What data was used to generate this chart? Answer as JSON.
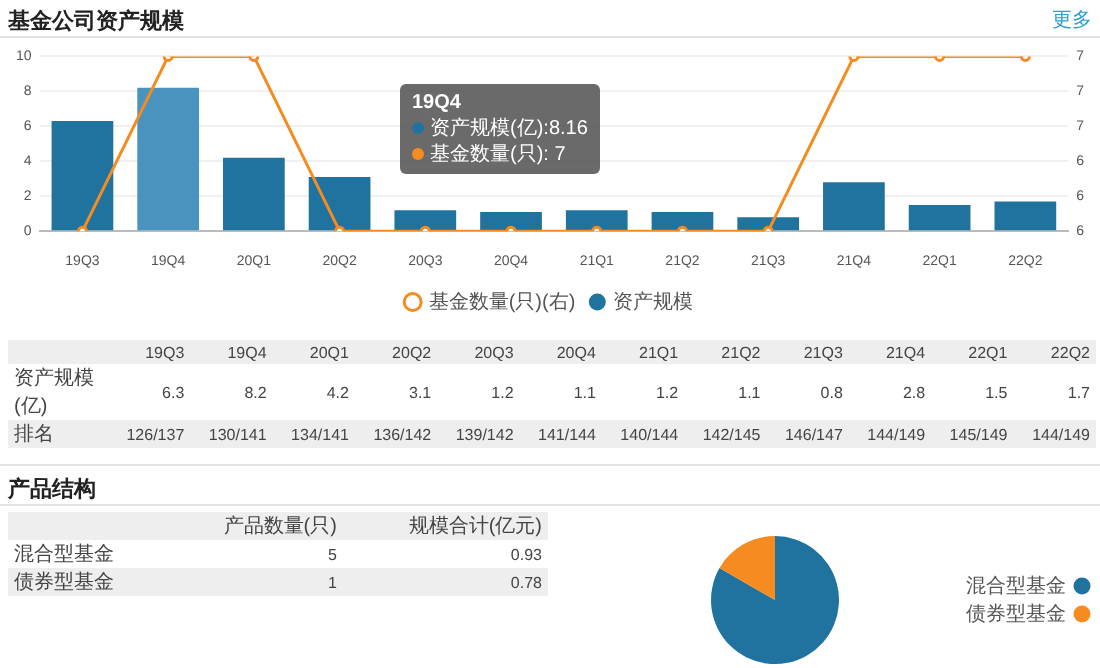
{
  "chart_data": [
    {
      "type": "bar",
      "title": "基金公司资产规模",
      "categories": [
        "19Q3",
        "19Q4",
        "20Q1",
        "20Q2",
        "20Q3",
        "20Q4",
        "21Q1",
        "21Q2",
        "21Q3",
        "21Q4",
        "22Q1",
        "22Q2"
      ],
      "series": [
        {
          "name": "资产规模",
          "type": "bar",
          "color": "#21739f",
          "colors": [
            "#21739f",
            "#4b93bf",
            "#21739f",
            "#21739f",
            "#21739f",
            "#21739f",
            "#21739f",
            "#21739f",
            "#21739f",
            "#21739f",
            "#21739f",
            "#21739f"
          ],
          "values": [
            6.3,
            8.2,
            4.2,
            3.1,
            1.2,
            1.1,
            1.2,
            1.1,
            0.8,
            2.8,
            1.5,
            1.7
          ]
        },
        {
          "name": "基金数量(只)(右)",
          "type": "line",
          "axis": "y2",
          "color": "#f68b1f",
          "values": [
            6,
            7,
            7,
            6,
            6,
            6,
            6,
            6,
            6,
            7,
            7,
            7
          ]
        }
      ],
      "ylim": [
        0,
        10
      ],
      "yticks": [
        0,
        2,
        4,
        6,
        8,
        10
      ],
      "y2lim": [
        6,
        7
      ],
      "y2ticks": [
        6,
        {
          "value": 6.2,
          "label": "6"
        },
        {
          "value": 6.4,
          "label": "6"
        },
        {
          "value": 6.6,
          "label": "7"
        },
        {
          "value": 6.8,
          "label": "7"
        },
        7
      ],
      "grid": "y",
      "legend": "bottom",
      "marker": "circle",
      "annotations": [
        "更多",
        "资产规模(亿)",
        "排名",
        "19Q4",
        "资产规模(亿):8.16",
        "基金数量(只):   7",
        "6.3",
        "8.2",
        "4.2",
        "3.1",
        "1.2",
        "1.1",
        "1.2",
        "1.1",
        "0.8",
        "2.8",
        "1.5",
        "1.7",
        "126/137",
        "130/141",
        "134/141",
        "136/142",
        "139/142",
        "141/144",
        "140/144",
        "142/145",
        "146/147",
        "144/149",
        "145/149",
        "144/149"
      ]
    },
    {
      "type": "pie",
      "categories": [
        "混合型基金",
        "债券型基金"
      ],
      "values": [
        83.3,
        16.7
      ],
      "colors": [
        "#21739f",
        "#f68b1f"
      ],
      "legend": "right",
      "annotations": [
        "产品结构",
        "产品数量(只)",
        "规模合计(亿元)",
        "5",
        "1",
        "0.93",
        "0.78"
      ]
    }
  ]
}
